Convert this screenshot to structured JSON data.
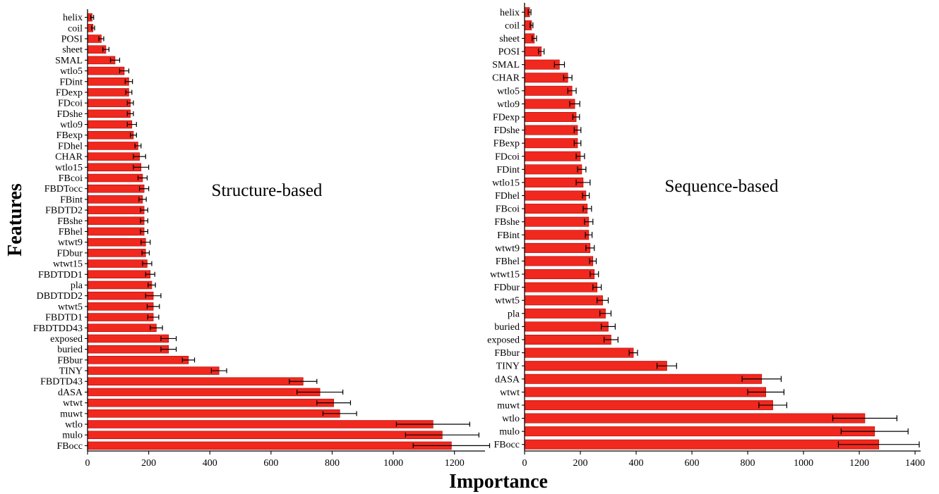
{
  "colors": {
    "bar": "#f0281e",
    "bar_edge": "#b00000",
    "error": "#000000"
  },
  "axis_titles": {
    "x": "Importance",
    "y": "Features"
  },
  "chart_data": [
    {
      "type": "bar",
      "orientation": "horizontal",
      "title": "Structure-based",
      "xlim": [
        0,
        1300
      ],
      "xticks": [
        0,
        200,
        400,
        600,
        800,
        1000,
        1200
      ],
      "categories": [
        "helix",
        "coil",
        "POSI",
        "sheet",
        "SMAL",
        "wtlo5",
        "FDint",
        "FDexp",
        "FDcoi",
        "FDshe",
        "wtlo9",
        "FBexp",
        "FDhel",
        "CHAR",
        "wtlo15",
        "FBcoi",
        "FBDTocc",
        "FBint",
        "FBDTD2",
        "FBshe",
        "FBhel",
        "wtwt9",
        "FDbur",
        "wtwt15",
        "FBDTDD1",
        "pla",
        "DBDTDD2",
        "wtwt5",
        "FBDTD1",
        "FBDTDD43",
        "exposed",
        "buried",
        "FBbur",
        "TINY",
        "FBDTD43",
        "dASA",
        "wtwt",
        "muwt",
        "wtlo",
        "mulo",
        "FBocc"
      ],
      "values": [
        15,
        18,
        45,
        60,
        90,
        120,
        135,
        135,
        140,
        140,
        145,
        150,
        165,
        170,
        175,
        180,
        185,
        180,
        185,
        185,
        185,
        190,
        190,
        195,
        205,
        210,
        215,
        215,
        215,
        225,
        265,
        265,
        330,
        430,
        705,
        760,
        805,
        825,
        1130,
        1160,
        1190
      ],
      "errors": [
        5,
        5,
        8,
        10,
        15,
        15,
        12,
        10,
        10,
        10,
        15,
        10,
        10,
        20,
        25,
        15,
        15,
        12,
        12,
        12,
        12,
        15,
        12,
        15,
        15,
        12,
        25,
        20,
        18,
        20,
        25,
        25,
        20,
        25,
        45,
        75,
        55,
        55,
        120,
        120,
        125
      ]
    },
    {
      "type": "bar",
      "orientation": "horizontal",
      "title": "Sequence-based",
      "xlim": [
        0,
        1420
      ],
      "xticks": [
        0,
        200,
        400,
        600,
        800,
        1000,
        1200,
        1400
      ],
      "categories": [
        "helix",
        "coil",
        "sheet",
        "POSI",
        "SMAL",
        "CHAR",
        "wtlo5",
        "wtlo9",
        "FDexp",
        "FDshe",
        "FBexp",
        "FDcoi",
        "FDint",
        "wtlo15",
        "FDhel",
        "FBcoi",
        "FBshe",
        "FBint",
        "wtwt9",
        "FBhel",
        "wtwt15",
        "FDbur",
        "wtwt5",
        "pla",
        "buried",
        "exposed",
        "FBbur",
        "TINY",
        "dASA",
        "wtwt",
        "muwt",
        "wtlo",
        "mulo",
        "FBocc"
      ],
      "values": [
        18,
        25,
        35,
        60,
        125,
        155,
        170,
        180,
        185,
        190,
        190,
        200,
        205,
        210,
        220,
        225,
        230,
        230,
        235,
        245,
        250,
        260,
        280,
        290,
        300,
        310,
        390,
        510,
        850,
        865,
        890,
        1220,
        1255,
        1270
      ],
      "errors": [
        5,
        5,
        8,
        10,
        18,
        15,
        15,
        18,
        12,
        12,
        12,
        15,
        15,
        25,
        12,
        15,
        15,
        12,
        15,
        12,
        15,
        15,
        20,
        20,
        25,
        25,
        15,
        35,
        70,
        65,
        50,
        115,
        120,
        145
      ]
    }
  ]
}
